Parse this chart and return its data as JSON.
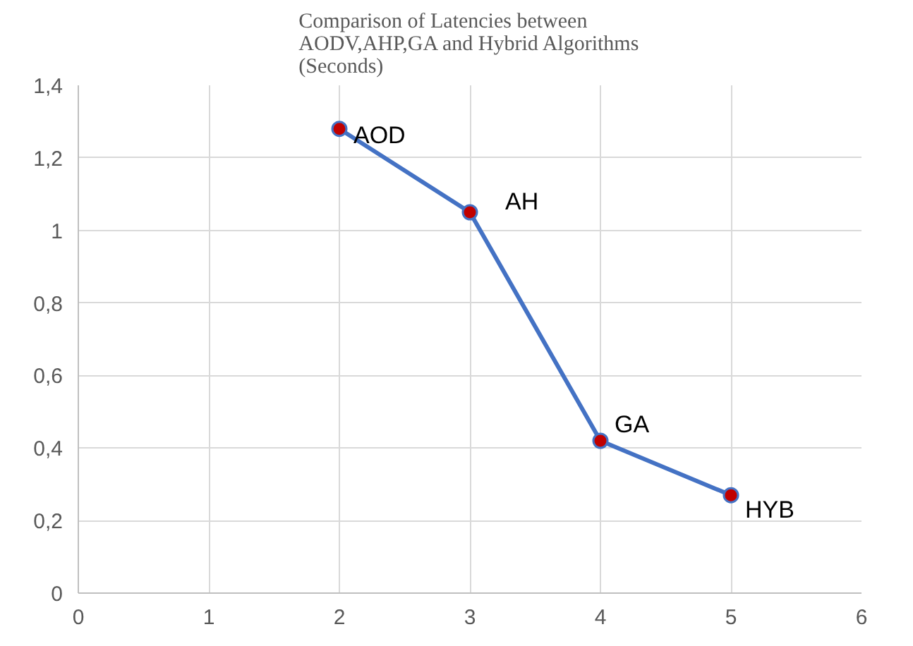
{
  "chart_data": {
    "type": "line",
    "title": "Comparison of Latencies between\nAODV,AHP,GA and Hybrid Algorithms\n(Seconds)",
    "x": [
      2,
      3,
      4,
      5
    ],
    "series": [
      {
        "color": "#4472c4",
        "colors": [
          "#c00000",
          "#c00000",
          "#c00000",
          "#c00000"
        ],
        "values": [
          1.28,
          1.05,
          0.42,
          0.27
        ]
      }
    ],
    "xlim": [
      0,
      6
    ],
    "xticks": [
      0,
      1,
      2,
      3,
      4,
      5,
      6
    ],
    "ylim": [
      0,
      1.4
    ],
    "yticks": [
      0,
      {
        "value": 0.2,
        "label": "0,2"
      },
      {
        "value": 0.4,
        "label": "0,4"
      },
      {
        "value": 0.6,
        "label": "0,6"
      },
      {
        "value": 0.8,
        "label": "0,8"
      },
      1,
      {
        "value": 1.2,
        "label": "1,2"
      },
      {
        "value": 1.4,
        "label": "1,4"
      }
    ],
    "annotations": [
      {
        "text": "AOD",
        "x": 2,
        "y": 1.28
      },
      {
        "text": "AH",
        "x": 3,
        "y": 1.05
      },
      {
        "text": "GA",
        "x": 4,
        "y": 0.42
      },
      {
        "text": "HYB",
        "x": 5,
        "y": 0.27
      }
    ],
    "grid": true,
    "marker": "circle",
    "line_style": "solid"
  }
}
